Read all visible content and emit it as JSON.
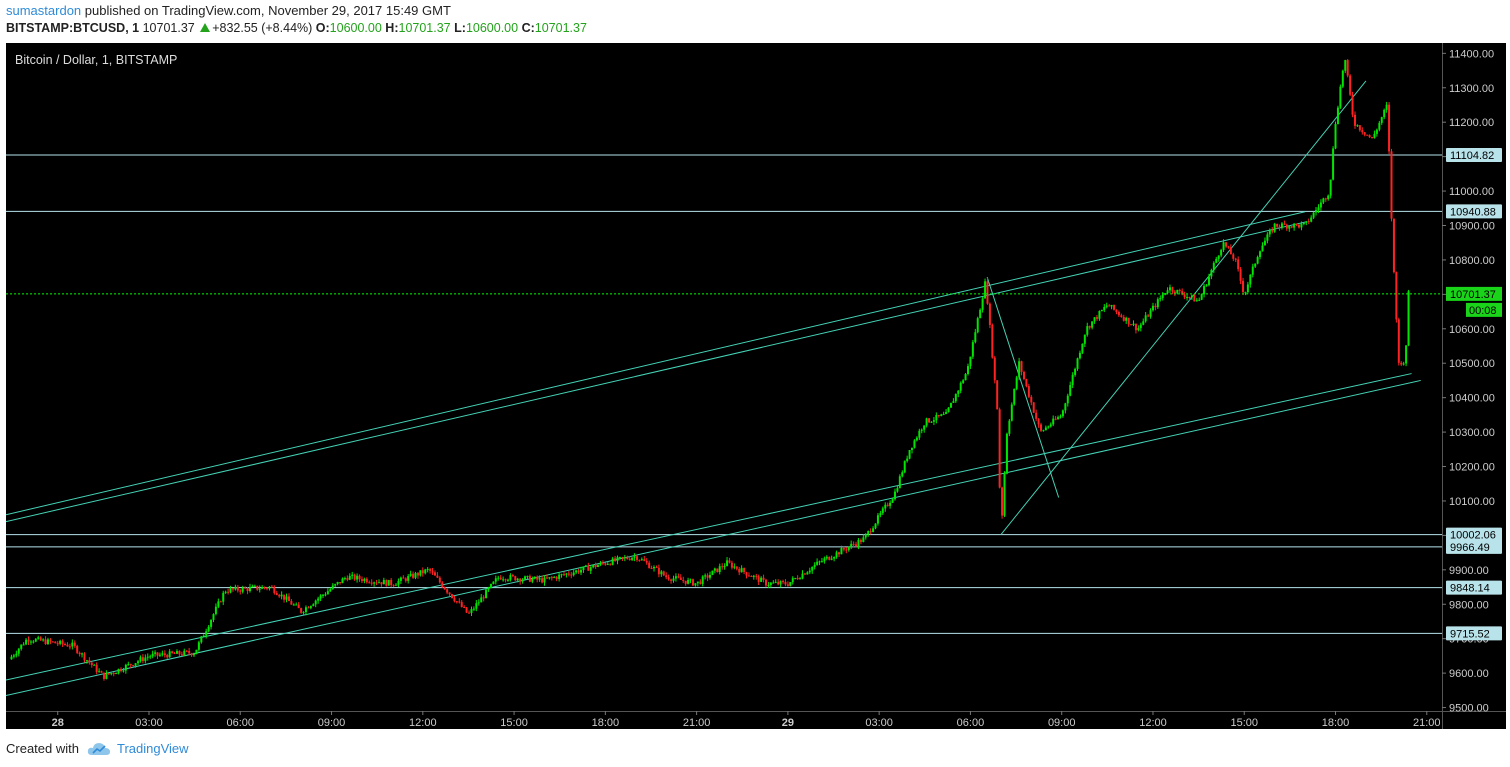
{
  "header": {
    "author": "sumastardon",
    "published_text": " published on TradingView.com, November 29, 2017 15:49 GMT",
    "symbol": "BITSTAMP:BTCUSD, 1",
    "last": "10701.37",
    "change": "+832.55 (+8.44%)",
    "o_label": "O:",
    "o_value": "10600.00",
    "h_label": "H:",
    "h_value": "10701.37",
    "l_label": "L:",
    "l_value": "10600.00",
    "c_label": "C:",
    "c_value": "10701.37"
  },
  "footer": {
    "created_with": "Created with",
    "brand": "TradingView",
    "logo_icon": "tradingview-cloud-icon"
  },
  "chart_data": {
    "type": "candlestick",
    "title": "Bitcoin / Dollar, 1, BITSTAMP",
    "background": "#000000",
    "colors": {
      "up": "#00e600",
      "down": "#ff2222",
      "annotation": "#44d3b5",
      "level_line": "#b4e4ec",
      "last_price": "#00ff00",
      "axis_text": "#cccccc"
    },
    "x_tick_labels": [
      "28",
      "03:00",
      "06:00",
      "09:00",
      "12:00",
      "15:00",
      "18:00",
      "21:00",
      "29",
      "03:00",
      "06:00",
      "09:00",
      "12:00",
      "15:00",
      "18:00",
      "21:00"
    ],
    "x_range_hours": [
      -1.7,
      45.5
    ],
    "y_tick_labels": [
      "9500.00",
      "9600.00",
      "9700.00",
      "9800.00",
      "9900.00",
      "10000.00",
      "10100.00",
      "10200.00",
      "10300.00",
      "10400.00",
      "10500.00",
      "10600.00",
      "10700.00",
      "10800.00",
      "10900.00",
      "11000.00",
      "11100.00",
      "11200.00",
      "11300.00",
      "11400.00"
    ],
    "ylim": [
      9490,
      11430
    ],
    "price_path": [
      {
        "t": -1.6,
        "p": 9640
      },
      {
        "t": -1.0,
        "p": 9700
      },
      {
        "t": 0.5,
        "p": 9680
      },
      {
        "t": 1.5,
        "p": 9590
      },
      {
        "t": 3.0,
        "p": 9650
      },
      {
        "t": 4.5,
        "p": 9660
      },
      {
        "t": 5.5,
        "p": 9840
      },
      {
        "t": 7.0,
        "p": 9850
      },
      {
        "t": 8.0,
        "p": 9780
      },
      {
        "t": 9.5,
        "p": 9880
      },
      {
        "t": 11.0,
        "p": 9860
      },
      {
        "t": 12.2,
        "p": 9900
      },
      {
        "t": 13.5,
        "p": 9770
      },
      {
        "t": 14.5,
        "p": 9880
      },
      {
        "t": 16.0,
        "p": 9870
      },
      {
        "t": 18.0,
        "p": 9920
      },
      {
        "t": 19.0,
        "p": 9940
      },
      {
        "t": 20.0,
        "p": 9880
      },
      {
        "t": 21.0,
        "p": 9860
      },
      {
        "t": 22.0,
        "p": 9920
      },
      {
        "t": 23.3,
        "p": 9860
      },
      {
        "t": 24.0,
        "p": 9860
      },
      {
        "t": 25.0,
        "p": 9920
      },
      {
        "t": 26.5,
        "p": 9990
      },
      {
        "t": 27.5,
        "p": 10120
      },
      {
        "t": 28.0,
        "p": 10250
      },
      {
        "t": 28.5,
        "p": 10330
      },
      {
        "t": 29.2,
        "p": 10350
      },
      {
        "t": 29.9,
        "p": 10480
      },
      {
        "t": 30.5,
        "p": 10740
      },
      {
        "t": 30.9,
        "p": 10350
      },
      {
        "t": 31.0,
        "p": 10002
      },
      {
        "t": 31.2,
        "p": 10300
      },
      {
        "t": 31.6,
        "p": 10500
      },
      {
        "t": 32.3,
        "p": 10300
      },
      {
        "t": 33.0,
        "p": 10350
      },
      {
        "t": 33.8,
        "p": 10600
      },
      {
        "t": 34.5,
        "p": 10670
      },
      {
        "t": 35.5,
        "p": 10600
      },
      {
        "t": 36.5,
        "p": 10720
      },
      {
        "t": 37.5,
        "p": 10680
      },
      {
        "t": 38.3,
        "p": 10850
      },
      {
        "t": 38.7,
        "p": 10800
      },
      {
        "t": 39.0,
        "p": 10700
      },
      {
        "t": 39.5,
        "p": 10830
      },
      {
        "t": 40.0,
        "p": 10900
      },
      {
        "t": 41.0,
        "p": 10900
      },
      {
        "t": 41.8,
        "p": 11000
      },
      {
        "t": 42.0,
        "p": 11200
      },
      {
        "t": 42.3,
        "p": 11390
      },
      {
        "t": 42.6,
        "p": 11200
      },
      {
        "t": 43.2,
        "p": 11150
      },
      {
        "t": 43.7,
        "p": 11250
      },
      {
        "t": 43.85,
        "p": 10900
      },
      {
        "t": 43.95,
        "p": 10700
      },
      {
        "t": 44.1,
        "p": 10480
      },
      {
        "t": 44.3,
        "p": 10520
      },
      {
        "t": 44.4,
        "p": 10701
      }
    ],
    "horizontal_levels": [
      11104.82,
      10940.88,
      10002.06,
      9966.49,
      9848.14,
      9715.52
    ],
    "last_price": {
      "value": 10701.37,
      "label": "10701.37",
      "countdown": "00:08"
    },
    "trendlines": [
      {
        "t1": -1.7,
        "p1": 10060,
        "t2": 41.0,
        "p2": 10940
      },
      {
        "t1": -1.7,
        "p1": 10040,
        "t2": 41.0,
        "p2": 10910
      },
      {
        "t1": -1.7,
        "p1": 9580,
        "t2": 44.5,
        "p2": 10470
      },
      {
        "t1": -1.7,
        "p1": 9535,
        "t2": 44.8,
        "p2": 10450
      },
      {
        "t1": 31.0,
        "p1": 10002,
        "t2": 43.0,
        "p2": 11320
      },
      {
        "t1": 30.55,
        "p1": 10750,
        "t2": 32.9,
        "p2": 10110
      }
    ]
  }
}
